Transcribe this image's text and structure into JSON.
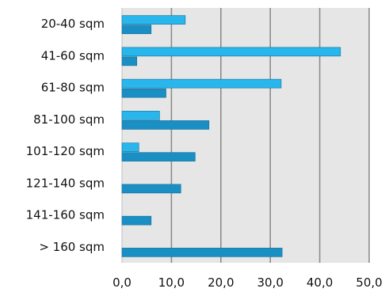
{
  "chart_data": {
    "type": "bar",
    "orientation": "horizontal",
    "categories": [
      "20-40 sqm",
      "41-60 sqm",
      "61-80 sqm",
      "81-100 sqm",
      "101-120 sqm",
      "121-140 sqm",
      "141-160 sqm",
      "> 160 sqm"
    ],
    "series": [
      {
        "values": [
          12.8,
          44.2,
          32.2,
          7.6,
          3.4,
          null,
          null,
          null
        ],
        "color": "#29b6ec"
      },
      {
        "values": [
          5.9,
          3.0,
          8.9,
          17.6,
          14.8,
          11.9,
          5.9,
          32.4
        ],
        "color": "#1a8fc4"
      }
    ],
    "x_ticks": [
      "0,0",
      "10,0",
      "20,0",
      "30,0",
      "40,0",
      "50,0"
    ],
    "xlim": [
      0,
      50
    ],
    "grid": "vertical",
    "plot_background": "#e6e6e6",
    "gridline_color": "#8c8c8c",
    "title": "",
    "xlabel": "",
    "ylabel": ""
  }
}
